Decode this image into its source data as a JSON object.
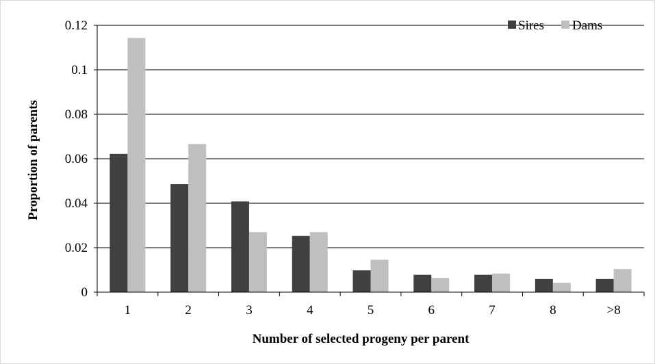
{
  "chart_data": {
    "type": "bar",
    "title": "",
    "xlabel": "Number of selected progeny per parent",
    "ylabel": "Proportion of parents",
    "categories": [
      "1",
      "2",
      "3",
      "4",
      "5",
      "6",
      "7",
      "8",
      ">8"
    ],
    "ylim": [
      0,
      0.12
    ],
    "y_ticks": [
      0,
      0.02,
      0.04,
      0.06,
      0.08,
      0.1,
      0.12
    ],
    "y_tick_labels": [
      "0",
      "0.02",
      "0.04",
      "0.06",
      "0.08",
      "0.1",
      "0.12"
    ],
    "grid": "horizontal",
    "legend_position": "top-right",
    "series": [
      {
        "name": "Sires",
        "color": "#404040",
        "values": [
          0.0622,
          0.0486,
          0.0408,
          0.0253,
          0.0098,
          0.0078,
          0.0078,
          0.0059,
          0.0059
        ]
      },
      {
        "name": "Dams",
        "color": "#bfbfbf",
        "values": [
          0.1143,
          0.0666,
          0.027,
          0.027,
          0.0146,
          0.0064,
          0.0084,
          0.0042,
          0.0104
        ]
      }
    ]
  }
}
